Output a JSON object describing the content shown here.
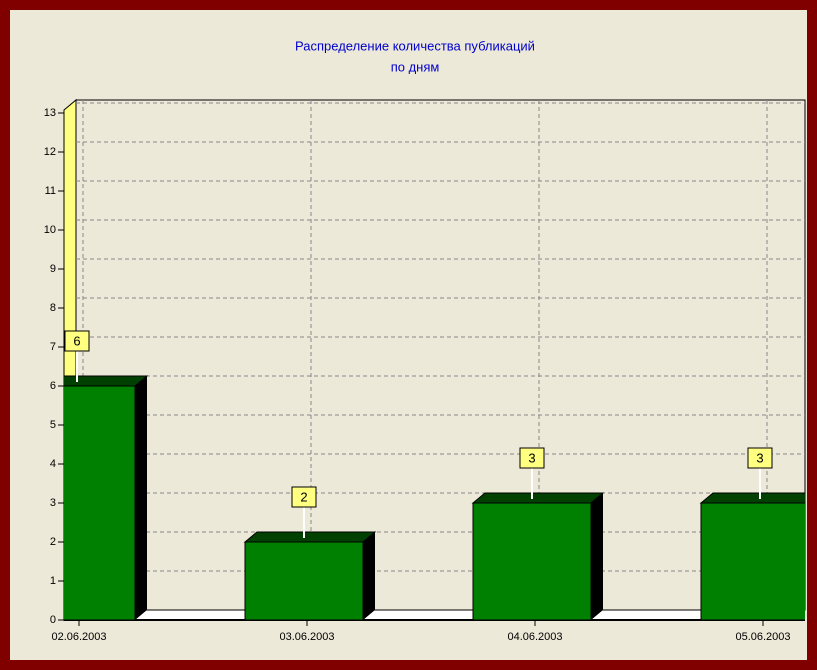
{
  "chart_data": {
    "type": "bar3d",
    "title": [
      "Распределение количества публикаций",
      "по дням"
    ],
    "categories": [
      "02.06.2003",
      "03.06.2003",
      "04.06.2003",
      "05.06.2003"
    ],
    "values": [
      6,
      2,
      3,
      3
    ],
    "color": "#008000",
    "ylim": [
      0,
      13
    ],
    "yticks": [
      0,
      1,
      2,
      3,
      4,
      5,
      6,
      7,
      8,
      9,
      10,
      11,
      12,
      13
    ],
    "grid": true
  }
}
